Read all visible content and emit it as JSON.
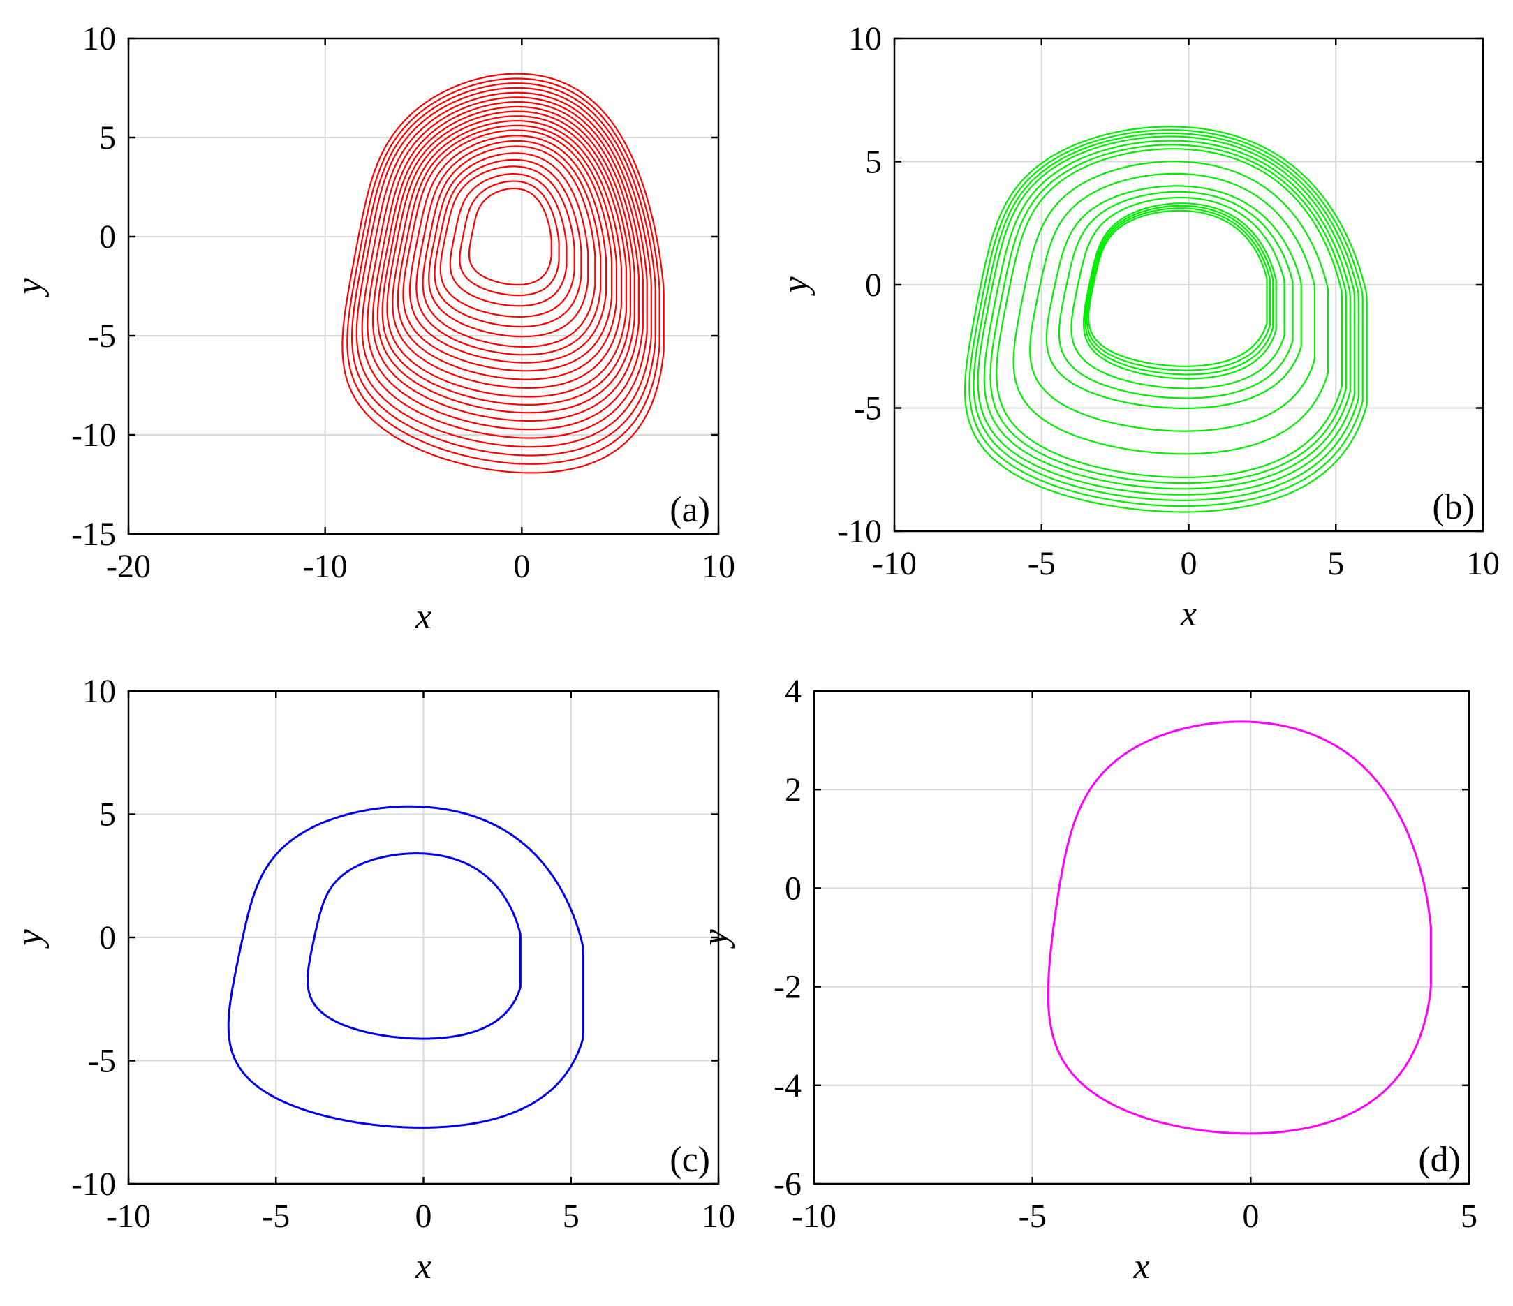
{
  "chart_data": [
    {
      "type": "line",
      "panel_label": "(a)",
      "xlabel": "x",
      "ylabel": "y",
      "xlim": [
        -20,
        10
      ],
      "ylim": [
        -15,
        10
      ],
      "xticks": [
        -20,
        -10,
        0,
        10
      ],
      "yticks": [
        -15,
        -10,
        -5,
        0,
        5,
        10
      ],
      "grid": true,
      "color": "#ff0000",
      "trajectory": "chaotic attractor",
      "x_range": [
        -10,
        6.8
      ],
      "y_range": [
        -11.8,
        8.1
      ],
      "loops": [
        {
          "xmin": -2.9,
          "xmax": 1.4,
          "ymin": -2.4,
          "ymax": 2.4
        },
        {
          "xmin": -4.5,
          "xmax": 2.5,
          "ymin": -4.0,
          "ymax": 3.5
        },
        {
          "xmin": -5.5,
          "xmax": 3.5,
          "ymin": -5.5,
          "ymax": 4.5
        },
        {
          "xmin": -6.6,
          "xmax": 4.3,
          "ymin": -6.7,
          "ymax": 5.3
        },
        {
          "xmin": -7.5,
          "xmax": 5.0,
          "ymin": -8.0,
          "ymax": 6.0
        },
        {
          "xmin": -8.3,
          "xmax": 5.6,
          "ymin": -9.2,
          "ymax": 6.7
        },
        {
          "xmin": -9.2,
          "xmax": 6.2,
          "ymin": -10.5,
          "ymax": 7.4
        },
        {
          "xmin": -10.0,
          "xmax": 6.8,
          "ymin": -11.8,
          "ymax": 8.1
        }
      ]
    },
    {
      "type": "line",
      "panel_label": "(b)",
      "xlabel": "x",
      "ylabel": "y",
      "xlim": [
        -10,
        10
      ],
      "ylim": [
        -10,
        10
      ],
      "xticks": [
        -10,
        -5,
        0,
        5,
        10
      ],
      "yticks": [
        -10,
        -5,
        0,
        5,
        10
      ],
      "grid": true,
      "color": "#00ee00",
      "trajectory": "chaotic attractor",
      "x_range": [
        -8.5,
        5.7
      ],
      "y_range": [
        -9.2,
        6.4
      ],
      "loops": [
        {
          "xmin": -3.8,
          "xmax": 2.5,
          "ymin": -3.3,
          "ymax": 3.0
        },
        {
          "xmin": -4.0,
          "xmax": 2.8,
          "ymin": -3.8,
          "ymax": 3.3
        },
        {
          "xmin": -5.4,
          "xmax": 3.6,
          "ymin": -5.0,
          "ymax": 4.0
        },
        {
          "xmin": -7.3,
          "xmax": 4.9,
          "ymin": -7.8,
          "ymax": 5.5
        },
        {
          "xmin": -8.0,
          "xmax": 5.3,
          "ymin": -8.5,
          "ymax": 6.0
        },
        {
          "xmin": -8.5,
          "xmax": 5.7,
          "ymin": -9.2,
          "ymax": 6.4
        }
      ]
    },
    {
      "type": "line",
      "panel_label": "(c)",
      "xlabel": "x",
      "ylabel": "y",
      "xlim": [
        -10,
        10
      ],
      "ylim": [
        -10,
        10
      ],
      "xticks": [
        -10,
        -5,
        0,
        5,
        10
      ],
      "yticks": [
        -10,
        -5,
        0,
        5,
        10
      ],
      "grid": true,
      "color": "#0000ee",
      "trajectory": "period-2 orbit",
      "loops": [
        {
          "xmin": -4.4,
          "xmax": 3.1,
          "ymin": -4.1,
          "ymax": 3.4
        },
        {
          "xmin": -7.4,
          "xmax": 5.1,
          "ymin": -7.7,
          "ymax": 5.3
        }
      ]
    },
    {
      "type": "line",
      "panel_label": "(d)",
      "xlabel": "x",
      "ylabel": "y",
      "xlim": [
        -10,
        5
      ],
      "ylim": [
        -6,
        4
      ],
      "xticks": [
        -10,
        -5,
        0,
        5
      ],
      "yticks": [
        -6,
        -4,
        -2,
        0,
        2,
        4
      ],
      "grid": true,
      "color": "#ff00ff",
      "trajectory": "period-1 orbit",
      "loops": [
        {
          "xmin": -5.2,
          "xmax": 3.9,
          "ymin": -5.0,
          "ymax": 3.4
        }
      ]
    }
  ]
}
